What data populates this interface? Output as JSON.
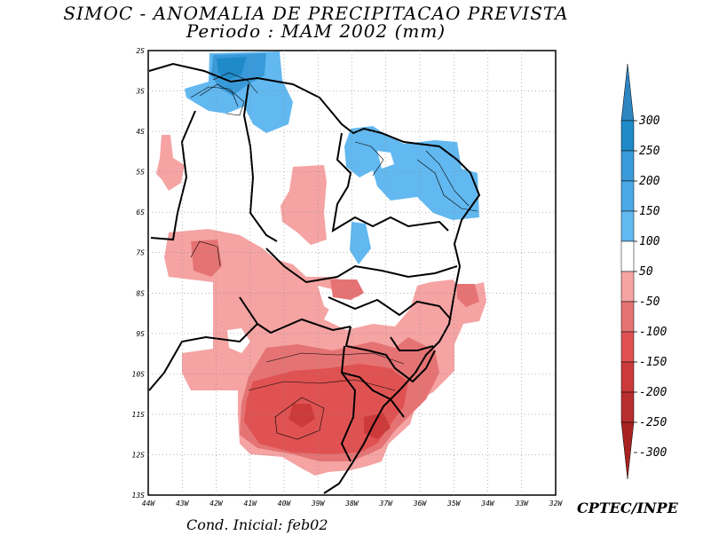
{
  "title": {
    "line1": "SIMOC -  ANOMALIA DE PRECIPITACAO PREVISTA",
    "line2": "Periodo : MAM 2002 (mm)"
  },
  "footer": {
    "initial_condition": "Cond. Inicial: feb02",
    "credit": "CPTEC/INPE"
  },
  "map": {
    "lon_labels": [
      "44W",
      "43W",
      "42W",
      "41W",
      "40W",
      "39W",
      "38W",
      "37W",
      "36W",
      "35W",
      "34W",
      "33W",
      "32W"
    ],
    "lat_labels": [
      "2S",
      "3S",
      "4S",
      "5S",
      "6S",
      "7S",
      "8S",
      "9S",
      "10S",
      "11S",
      "12S",
      "13S"
    ],
    "anomaly_regions": [
      {
        "name": "north-coast-positive",
        "class": "150-200"
      },
      {
        "name": "east-positive",
        "class": "100-150"
      },
      {
        "name": "west-interior-negative",
        "class": "-50 to -100"
      },
      {
        "name": "south-negative",
        "class": "-150 to -200"
      }
    ]
  },
  "colorbar": {
    "labels": [
      "300",
      "250",
      "200",
      "150",
      "100",
      "50",
      "-50",
      "-100",
      "-150",
      "-200",
      "-250",
      "-300"
    ],
    "colors": [
      "#2e86c1",
      "#1f8ac8",
      "#3a9ad9",
      "#4aa8e6",
      "#62b8f0",
      "#ffffff",
      "#f5a3a3",
      "#e57373",
      "#e05252",
      "#cc3a3a",
      "#b82e2e",
      "#a82222"
    ]
  }
}
